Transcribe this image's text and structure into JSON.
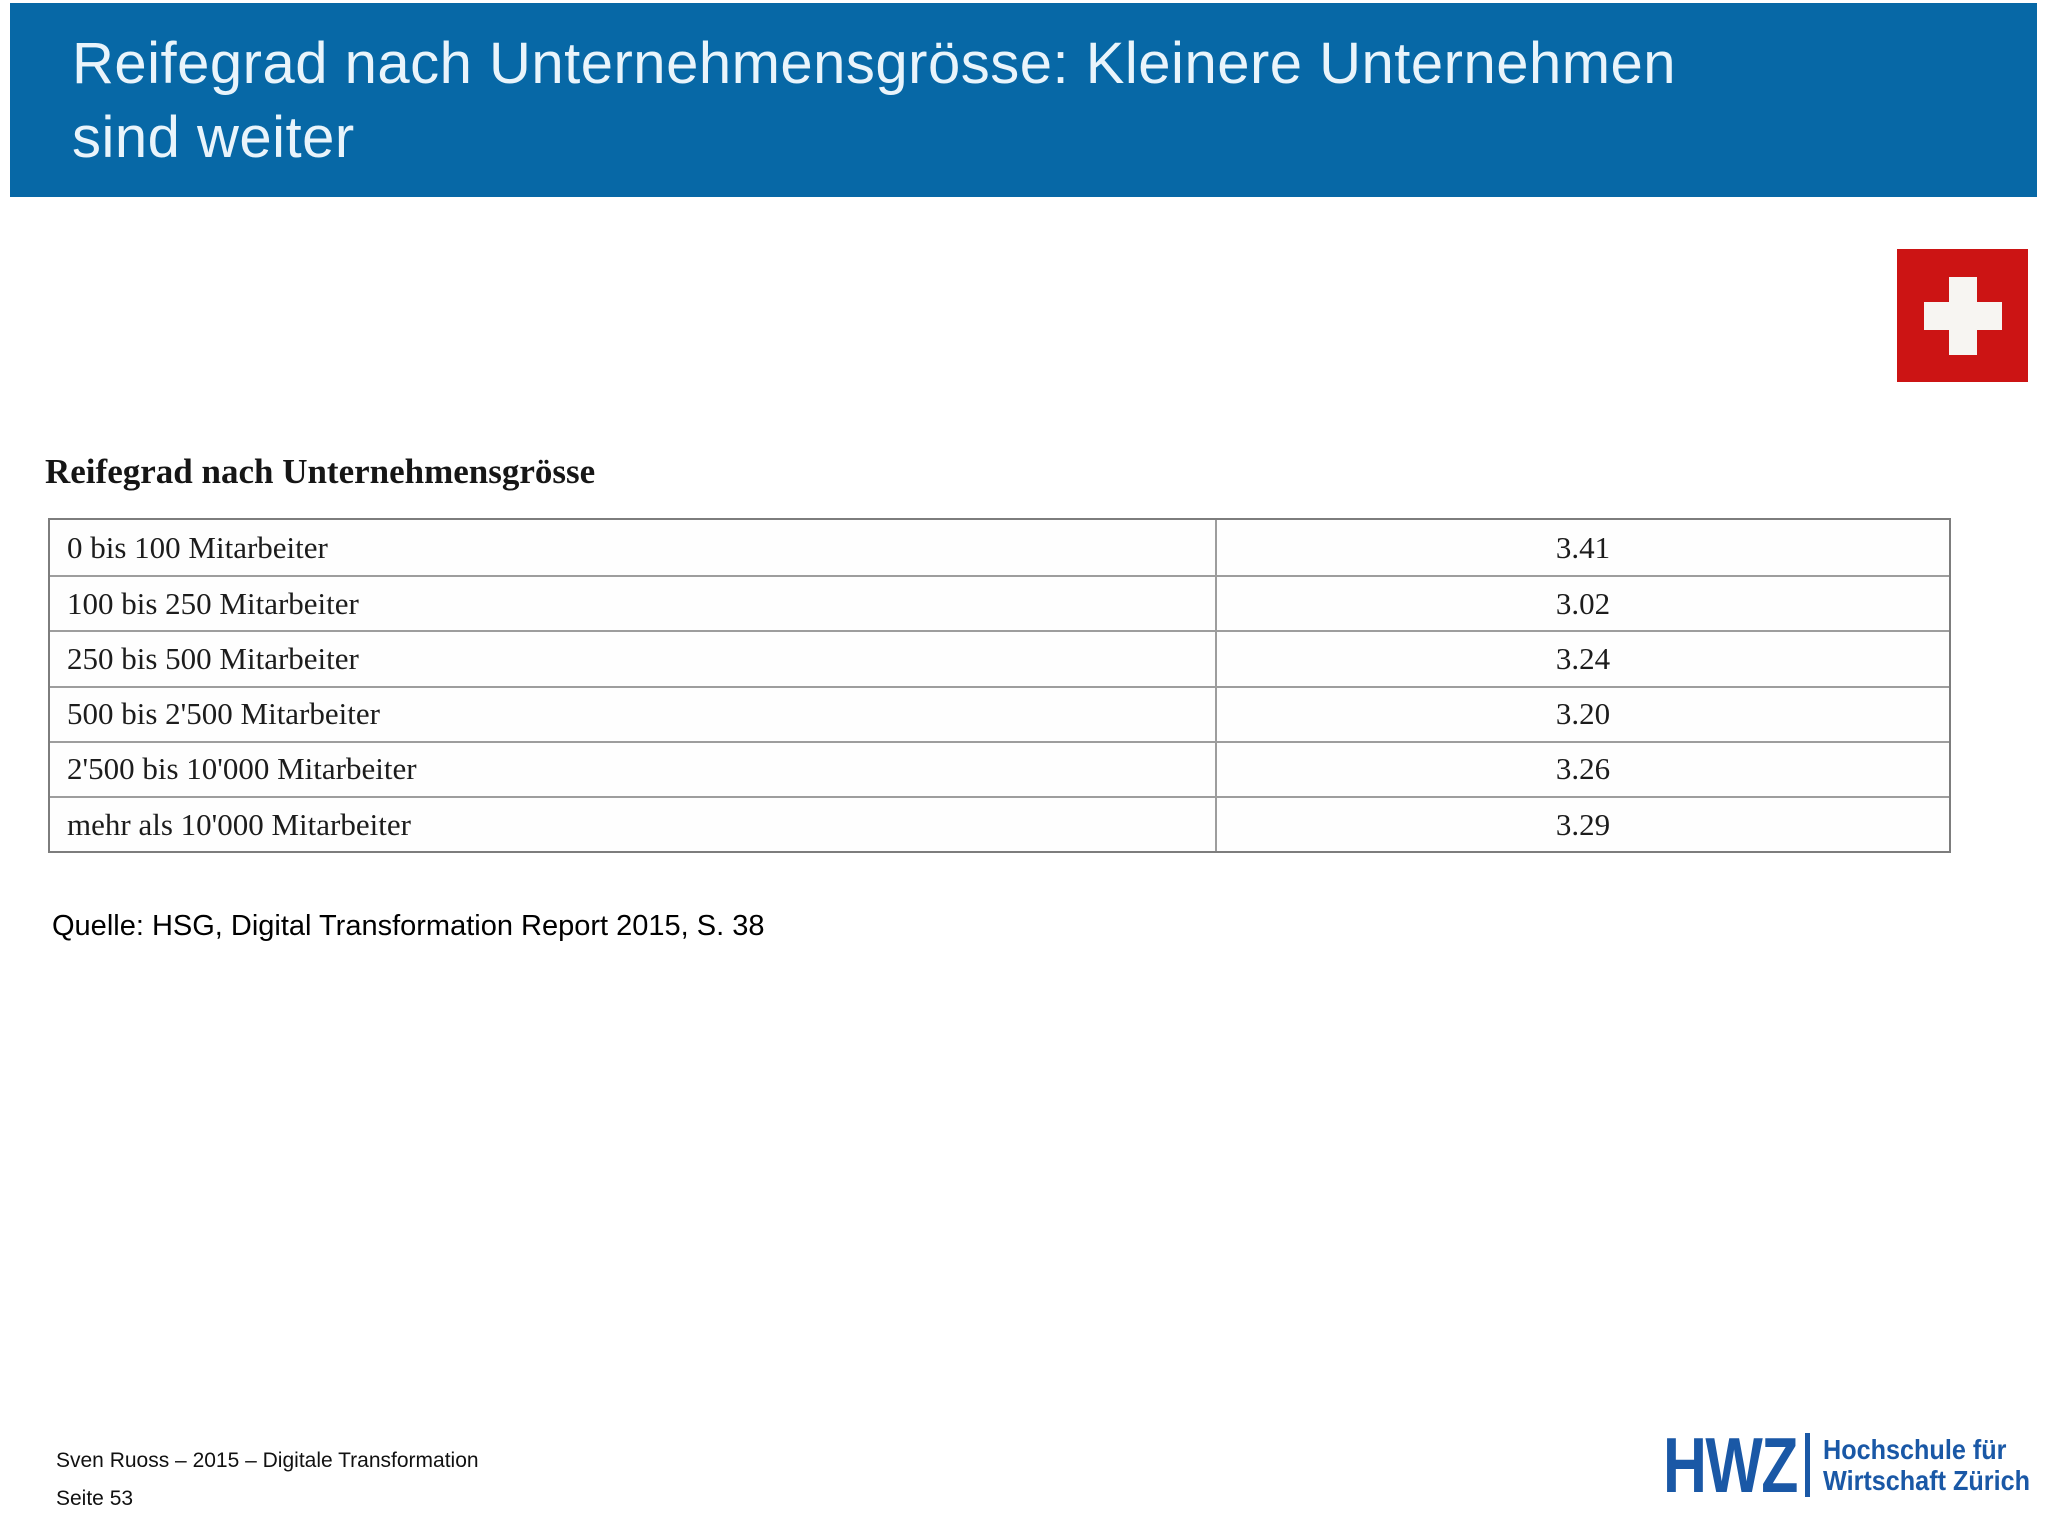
{
  "header": {
    "title_line1": "Reifegrad nach Unternehmensgrösse: Kleinere Unternehmen",
    "title_line2": "sind weiter"
  },
  "flag": {
    "name": "swiss-flag"
  },
  "table_section": {
    "heading": "Reifegrad nach Unternehmensgrösse",
    "rows": [
      {
        "label": "0 bis 100 Mitarbeiter",
        "value": "3.41"
      },
      {
        "label": "100 bis 250 Mitarbeiter",
        "value": "3.02"
      },
      {
        "label": "250 bis 500 Mitarbeiter",
        "value": "3.24"
      },
      {
        "label": "500 bis 2'500 Mitarbeiter",
        "value": "3.20"
      },
      {
        "label": "2'500 bis 10'000 Mitarbeiter",
        "value": "3.26"
      },
      {
        "label": "mehr als 10'000 Mitarbeiter",
        "value": "3.29"
      }
    ]
  },
  "chart_data": {
    "type": "table",
    "title": "Reifegrad nach Unternehmensgrösse",
    "categories": [
      "0 bis 100 Mitarbeiter",
      "100 bis 250 Mitarbeiter",
      "250 bis 500 Mitarbeiter",
      "500 bis 2'500 Mitarbeiter",
      "2'500 bis 10'000 Mitarbeiter",
      "mehr als 10'000 Mitarbeiter"
    ],
    "values": [
      3.41,
      3.02,
      3.24,
      3.2,
      3.26,
      3.29
    ]
  },
  "source": "Quelle: HSG, Digital Transformation Report 2015, S. 38",
  "footer": {
    "line1": "Sven Ruoss – 2015 – Digitale Transformation",
    "line2": "Seite 53"
  },
  "logo": {
    "abbr": "HWZ",
    "line1": "Hochschule für",
    "line2": "Wirtschaft Zürich"
  },
  "colors": {
    "header_bg": "#0768a6",
    "flag_red": "#cc1414",
    "logo_blue": "#1a58a6"
  }
}
